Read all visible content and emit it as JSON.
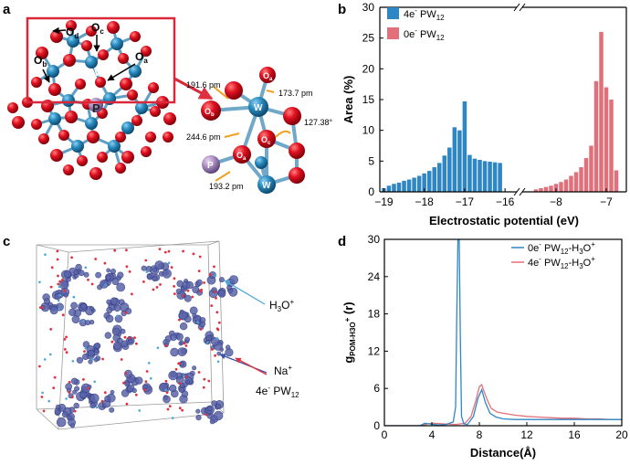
{
  "panels": {
    "a": {
      "letter": "a",
      "labels": {
        "od": "O",
        "od_sub": "d",
        "oc": "O",
        "oc_sub": "c",
        "ob": "O",
        "ob_sub": "b",
        "oa": "O",
        "oa_sub": "a",
        "w": "W",
        "p": "P"
      },
      "zoom": {
        "bond1": "191.6 pm",
        "bond2": "173.7 pm",
        "angle": "127.38°",
        "bond3": "244.6 pm",
        "bond4": "193.2 pm",
        "ob": "O",
        "ob_sub": "b",
        "oa": "O",
        "oa_sub": "a",
        "oc": "O",
        "oc_sub": "c",
        "w": "W",
        "p": "P"
      }
    },
    "b": {
      "letter": "b"
    },
    "c": {
      "letter": "c",
      "h3o_label": "H",
      "h3o_sub": "3",
      "h3o_tail": "O",
      "h3o_sup": "+",
      "na_label": "Na",
      "na_sup": "+",
      "pw_label": "4e",
      "pw_sup": "-",
      "pw_tail": " PW",
      "pw_sub": "12"
    },
    "d": {
      "letter": "d"
    }
  },
  "chart_data": [
    {
      "id": "b",
      "type": "bar",
      "xlabel": "Electrostatic potential (eV)",
      "ylabel": "Area (%)",
      "ylim": [
        0,
        30
      ],
      "yticks": [
        0,
        5,
        10,
        15,
        20,
        25,
        30
      ],
      "xticks_left": [
        -19,
        -18,
        -17,
        -16
      ],
      "xticks_right": [
        -8,
        -7
      ],
      "xlim_left": [
        -19.1,
        -15.8
      ],
      "xlim_right": [
        -8.6,
        -6.6
      ],
      "broken_axis": true,
      "legend_position": "top-left",
      "bin_width": 0.125,
      "series": [
        {
          "name": "4e⁻ PW₁₂",
          "legend_main": "4e",
          "legend_sup": "-",
          "legend_tail": " PW",
          "legend_sub": "12",
          "color": "#2f86c4",
          "x": [
            -19.0,
            -18.875,
            -18.75,
            -18.625,
            -18.5,
            -18.375,
            -18.25,
            -18.125,
            -18.0,
            -17.875,
            -17.75,
            -17.625,
            -17.5,
            -17.375,
            -17.25,
            -17.125,
            -17.0,
            -16.875,
            -16.75,
            -16.625,
            -16.5,
            -16.375,
            -16.25,
            -16.125
          ],
          "values": [
            0.6,
            1.0,
            1.3,
            1.5,
            1.8,
            2.0,
            2.3,
            2.6,
            3.0,
            3.4,
            4.0,
            4.7,
            5.9,
            7.2,
            10.5,
            10.0,
            14.7,
            6.0,
            5.4,
            5.2,
            5.0,
            4.9,
            4.8,
            4.7
          ]
        },
        {
          "name": "0e⁻ PW₁₂",
          "legend_main": "0e",
          "legend_sup": "-",
          "legend_tail": " PW",
          "legend_sub": "12",
          "color": "#e2707a",
          "x": [
            -8.4,
            -8.3,
            -8.2,
            -8.1,
            -8.0,
            -7.9,
            -7.8,
            -7.7,
            -7.6,
            -7.5,
            -7.4,
            -7.3,
            -7.2,
            -7.1,
            -7.0,
            -6.9,
            -6.8
          ],
          "values": [
            0.4,
            0.6,
            0.8,
            1.0,
            1.3,
            1.6,
            2.0,
            2.6,
            3.2,
            4.0,
            5.5,
            7.5,
            18.0,
            26.0,
            17.0,
            15.0,
            3.5
          ]
        }
      ]
    },
    {
      "id": "d",
      "type": "line",
      "xlabel": "Distance(Å)",
      "ylabel_main": "g",
      "ylabel_sub": "POM-H3O",
      "ylabel_sup": "+",
      "ylabel_tail": "(r)",
      "xlim": [
        0,
        20
      ],
      "ylim": [
        0,
        30
      ],
      "xticks": [
        0,
        4,
        8,
        12,
        16,
        20
      ],
      "yticks": [
        0,
        6,
        12,
        18,
        24,
        30
      ],
      "legend_position": "top-right",
      "series": [
        {
          "name": "0e⁻ PW₁₂-H₃O⁺",
          "legend_main": "0e",
          "legend_sup": "-",
          "legend_tail": " PW",
          "legend_sub": "12",
          "legend_tail2": "-H",
          "legend_sub2": "3",
          "legend_tail3": "O",
          "legend_sup2": "+",
          "color": "#2f86c4",
          "x": [
            0,
            3.0,
            3.4,
            3.8,
            4.6,
            5.2,
            5.8,
            6.0,
            6.1,
            6.2,
            6.3,
            6.4,
            6.5,
            6.7,
            7.0,
            7.5,
            7.9,
            8.2,
            8.5,
            8.9,
            9.4,
            10,
            11,
            12,
            14,
            16,
            18,
            20
          ],
          "y": [
            0,
            0,
            0.4,
            0.3,
            0.1,
            0.2,
            0.6,
            3.0,
            18.0,
            30.5,
            30.5,
            14.0,
            1.5,
            0.3,
            0.2,
            1.5,
            4.5,
            5.8,
            3.8,
            2.0,
            1.4,
            1.1,
            1.0,
            1.0,
            1.0,
            1.0,
            1.0,
            1.0
          ]
        },
        {
          "name": "4e⁻ PW₁₂-H₃O⁺",
          "legend_main": "4e",
          "legend_sup": "-",
          "legend_tail": " PW",
          "legend_sub": "12",
          "legend_tail2": "-H",
          "legend_sub2": "3",
          "legend_tail3": "O",
          "legend_sup2": "+",
          "color": "#e2707a",
          "x": [
            0,
            3.2,
            3.6,
            4.2,
            5.0,
            6.0,
            6.8,
            7.3,
            7.7,
            8.0,
            8.2,
            8.4,
            8.7,
            9.0,
            9.5,
            10,
            11,
            12,
            13,
            14,
            15,
            16,
            17,
            18,
            19,
            20
          ],
          "y": [
            0,
            0,
            0.3,
            0.4,
            0.3,
            0.2,
            0.4,
            1.5,
            4.0,
            6.3,
            6.6,
            5.5,
            4.0,
            2.8,
            2.2,
            2.0,
            1.7,
            1.5,
            1.4,
            1.3,
            1.2,
            1.2,
            1.1,
            1.1,
            1.0,
            1.0
          ]
        }
      ]
    }
  ]
}
